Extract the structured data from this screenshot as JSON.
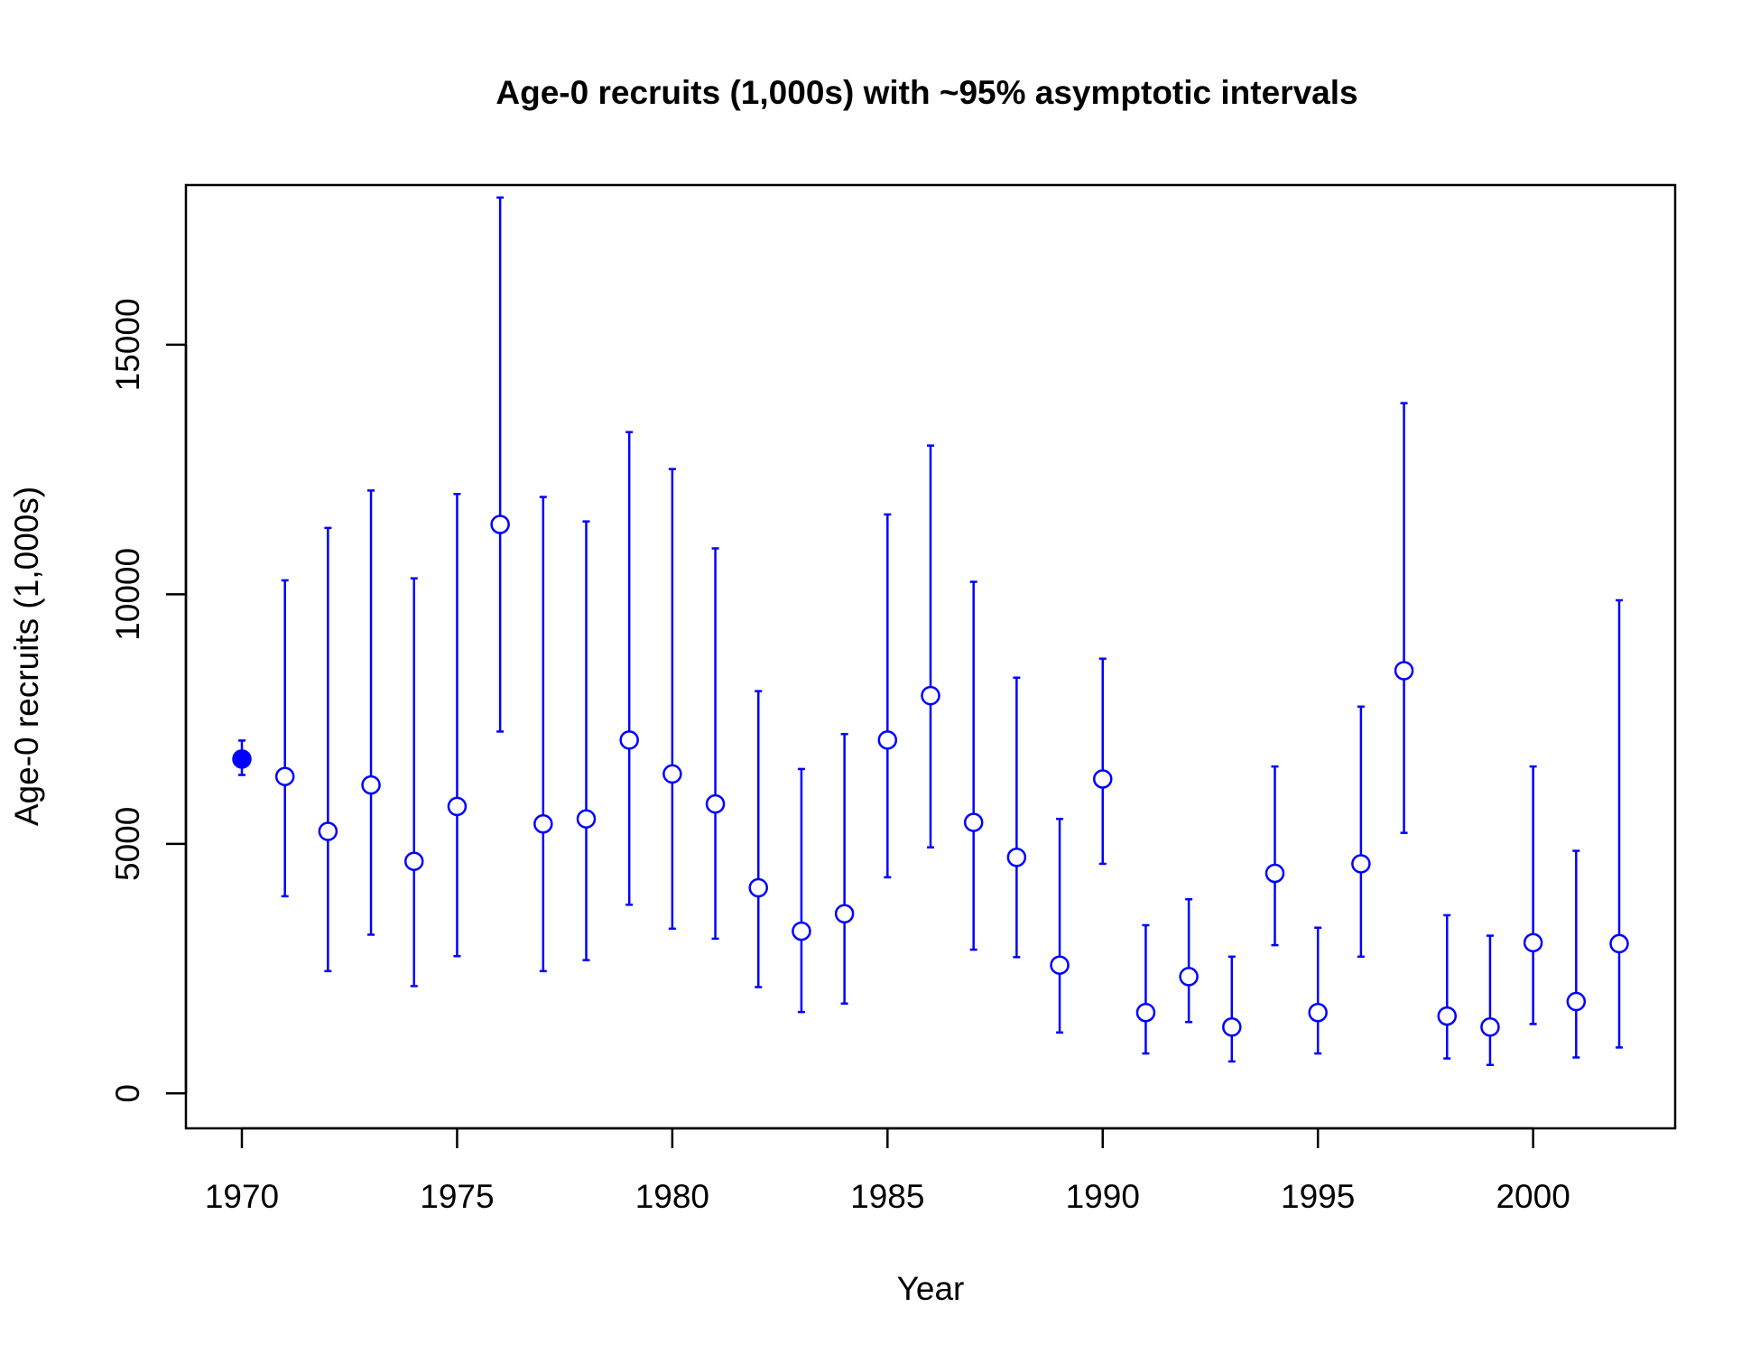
{
  "chart_data": {
    "type": "scatter",
    "title": "Age-0 recruits (1,000s) with ~95% asymptotic intervals",
    "xlabel": "Year",
    "ylabel": "Age-0 recruits (1,000s)",
    "xlim": [
      1968.7,
      2003.3
    ],
    "ylim": [
      -700,
      18200
    ],
    "x_ticks": [
      1970,
      1975,
      1980,
      1985,
      1990,
      1995,
      2000
    ],
    "x_tick_labels": [
      "1970",
      "1975",
      "1980",
      "1985",
      "1990",
      "1995",
      "2000"
    ],
    "y_ticks": [
      0,
      5000,
      10000,
      15000
    ],
    "y_tick_labels": [
      "0",
      "5000",
      "10000",
      "15000"
    ],
    "grid": false,
    "legend": "none",
    "color": "#0000ff",
    "x": [
      1970,
      1971,
      1972,
      1973,
      1974,
      1975,
      1976,
      1977,
      1978,
      1979,
      1980,
      1981,
      1982,
      1983,
      1984,
      1985,
      1986,
      1987,
      1988,
      1989,
      1990,
      1991,
      1992,
      1993,
      1994,
      1995,
      1996,
      1997,
      1998,
      1999,
      2000,
      2001,
      2002
    ],
    "values": [
      6700,
      6350,
      5250,
      6180,
      4650,
      5750,
      11400,
      5400,
      5500,
      7080,
      6400,
      5800,
      4120,
      3250,
      3600,
      7080,
      7970,
      5430,
      4730,
      2570,
      6300,
      1620,
      2340,
      1330,
      4410,
      1620,
      4600,
      8470,
      1550,
      1330,
      3020,
      1840,
      3000
    ],
    "lower": [
      6380,
      3950,
      2450,
      3180,
      2150,
      2750,
      7250,
      2450,
      2670,
      3780,
      3300,
      3100,
      2130,
      1630,
      1800,
      4330,
      4930,
      2880,
      2730,
      1220,
      4600,
      800,
      1430,
      640,
      2970,
      800,
      2740,
      5220,
      700,
      570,
      1390,
      720,
      920
    ],
    "upper": [
      7070,
      10280,
      11330,
      12080,
      10320,
      12010,
      17950,
      11950,
      11460,
      13250,
      12510,
      10920,
      8060,
      6500,
      7200,
      11600,
      12980,
      10250,
      8330,
      5500,
      8710,
      3370,
      3890,
      2740,
      6550,
      3320,
      7750,
      13830,
      3570,
      3160,
      6550,
      4860,
      9880
    ],
    "filled": [
      true,
      false,
      false,
      false,
      false,
      false,
      false,
      false,
      false,
      false,
      false,
      false,
      false,
      false,
      false,
      false,
      false,
      false,
      false,
      false,
      false,
      false,
      false,
      false,
      false,
      false,
      false,
      false,
      false,
      false,
      false,
      false,
      false
    ]
  }
}
